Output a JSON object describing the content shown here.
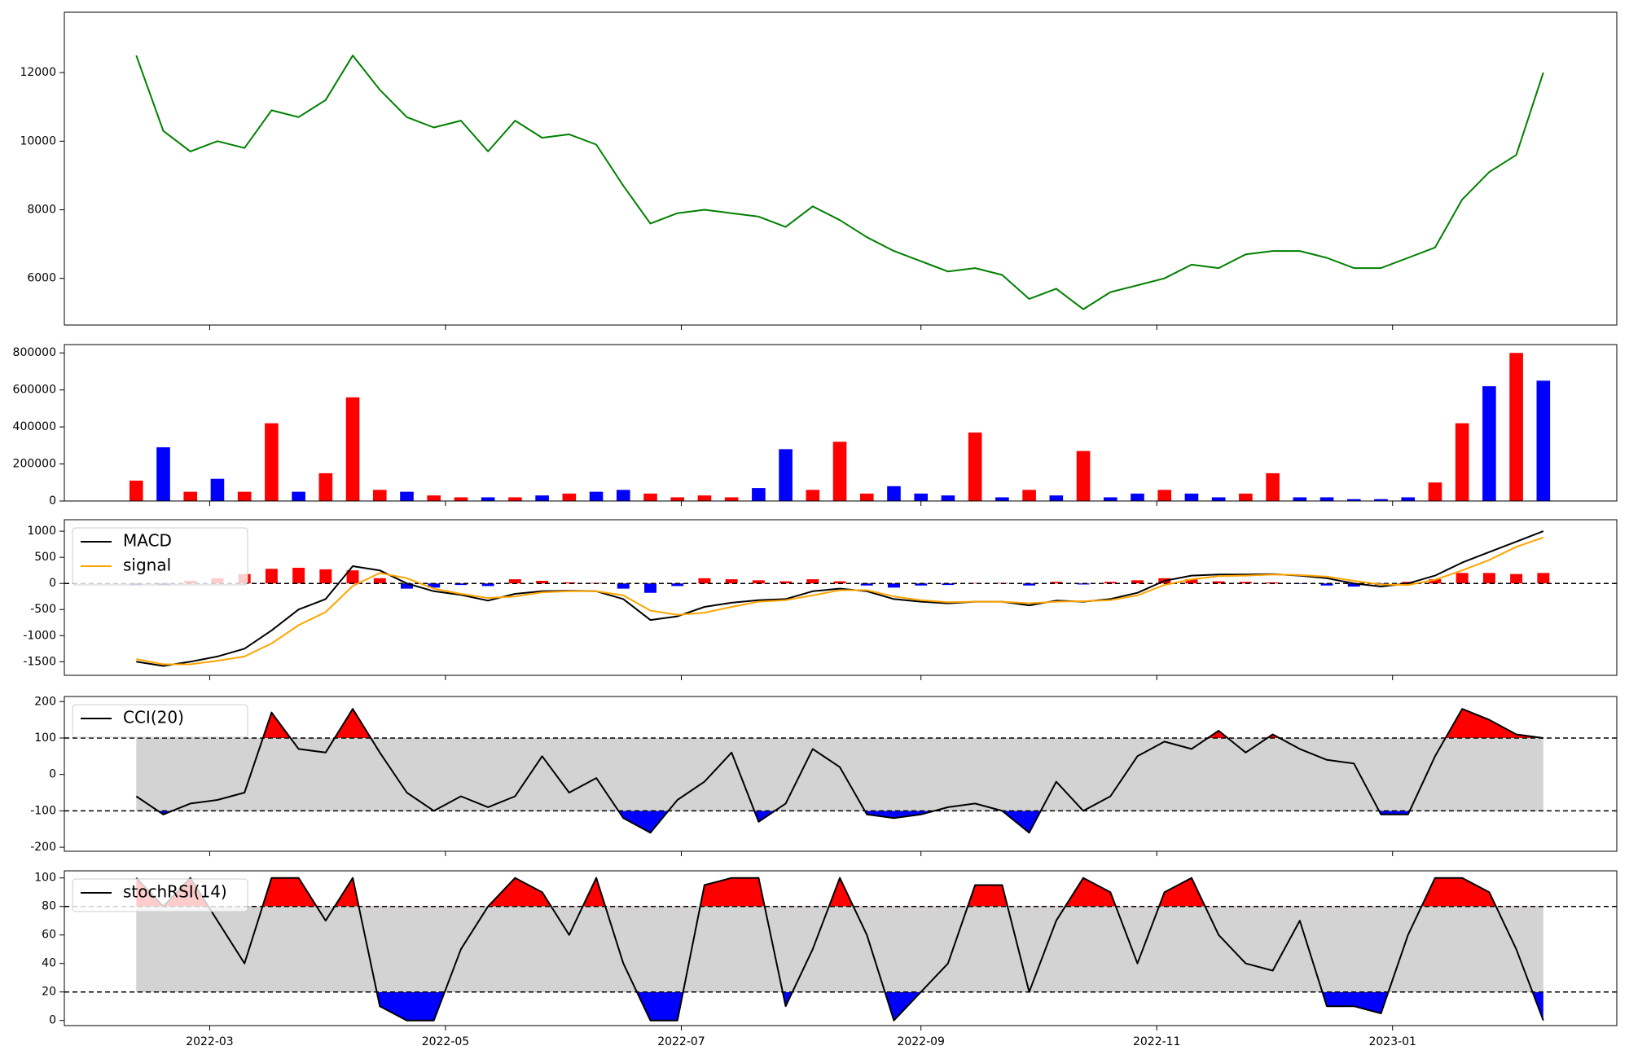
{
  "chart_data": [
    {
      "type": "line",
      "color": "green",
      "x": [
        40,
        47,
        54,
        61,
        68,
        75,
        82,
        89,
        96,
        103,
        110,
        117,
        124,
        131,
        138,
        145,
        152,
        159,
        166,
        173,
        180,
        187,
        194,
        201,
        208,
        215,
        222,
        229,
        236,
        243,
        250,
        257,
        264,
        271,
        278,
        285,
        292,
        299,
        306,
        313,
        320,
        327,
        334,
        341,
        348,
        355,
        362,
        369,
        376,
        383,
        390,
        397,
        404
      ],
      "values": [
        12500,
        10300,
        9700,
        10000,
        9800,
        10900,
        10700,
        11200,
        12500,
        11500,
        10700,
        10400,
        10600,
        9700,
        10600,
        10100,
        10200,
        9900,
        8700,
        7600,
        7900,
        8000,
        7900,
        7800,
        7500,
        8100,
        7700,
        7200,
        6800,
        6500,
        6200,
        6300,
        6100,
        5400,
        5700,
        5100,
        5600,
        5800,
        6000,
        6400,
        6300,
        6700,
        6800,
        6800,
        6600,
        6300,
        6300,
        6600,
        6900,
        8300,
        9100,
        9600,
        12000
      ],
      "xlim": [
        21.4,
        423
      ],
      "ylim": [
        4640,
        13760
      ],
      "yticks": [
        6000,
        8000,
        10000,
        12000
      ]
    },
    {
      "type": "bar",
      "x": [
        40,
        47,
        54,
        61,
        68,
        75,
        82,
        89,
        96,
        103,
        110,
        117,
        124,
        131,
        138,
        145,
        152,
        159,
        166,
        173,
        180,
        187,
        194,
        201,
        208,
        215,
        222,
        229,
        236,
        243,
        250,
        257,
        264,
        271,
        278,
        285,
        292,
        299,
        306,
        313,
        320,
        327,
        334,
        341,
        348,
        355,
        362,
        369,
        376,
        383,
        390,
        397,
        404
      ],
      "values": [
        110000,
        290000,
        50000,
        120000,
        50000,
        420000,
        50000,
        150000,
        560000,
        60000,
        50000,
        30000,
        20000,
        20000,
        20000,
        30000,
        40000,
        50000,
        60000,
        40000,
        20000,
        30000,
        20000,
        70000,
        280000,
        60000,
        320000,
        40000,
        80000,
        40000,
        30000,
        370000,
        20000,
        60000,
        30000,
        270000,
        20000,
        40000,
        60000,
        40000,
        20000,
        40000,
        150000,
        20000,
        20000,
        10000,
        10000,
        20000,
        100000,
        420000,
        620000,
        800000,
        650000
      ],
      "colors": [
        "red",
        "blue",
        "red",
        "blue",
        "red",
        "red",
        "blue",
        "red",
        "red",
        "red",
        "blue",
        "red",
        "red",
        "blue",
        "red",
        "blue",
        "red",
        "blue",
        "blue",
        "red",
        "red",
        "red",
        "red",
        "blue",
        "blue",
        "red",
        "red",
        "red",
        "blue",
        "blue",
        "blue",
        "red",
        "blue",
        "red",
        "blue",
        "red",
        "blue",
        "blue",
        "red",
        "blue",
        "blue",
        "red",
        "red",
        "blue",
        "blue",
        "blue",
        "blue",
        "blue",
        "red",
        "red",
        "blue",
        "red",
        "blue"
      ],
      "xlim": [
        21.4,
        423
      ],
      "ylim": [
        0,
        845000
      ],
      "yticks": [
        0,
        200000,
        400000,
        600000,
        800000
      ]
    },
    {
      "type": "macd",
      "x": [
        40,
        47,
        54,
        61,
        68,
        75,
        82,
        89,
        96,
        103,
        110,
        117,
        124,
        131,
        138,
        145,
        152,
        159,
        166,
        173,
        180,
        187,
        194,
        201,
        208,
        215,
        222,
        229,
        236,
        243,
        250,
        257,
        264,
        271,
        278,
        285,
        292,
        299,
        306,
        313,
        320,
        327,
        334,
        341,
        348,
        355,
        362,
        369,
        376,
        383,
        390,
        397,
        404
      ],
      "series": [
        {
          "name": "MACD",
          "color": "black",
          "values": [
            -1500,
            -1580,
            -1500,
            -1400,
            -1250,
            -900,
            -500,
            -300,
            330,
            250,
            0,
            -150,
            -220,
            -330,
            -200,
            -150,
            -140,
            -150,
            -300,
            -700,
            -630,
            -450,
            -370,
            -320,
            -300,
            -150,
            -100,
            -150,
            -300,
            -350,
            -380,
            -350,
            -350,
            -420,
            -330,
            -350,
            -300,
            -180,
            50,
            150,
            170,
            170,
            180,
            150,
            100,
            0,
            -60,
            0,
            150,
            400,
            600,
            800,
            1000
          ]
        },
        {
          "name": "signal",
          "color": "orange",
          "values": [
            -1450,
            -1550,
            -1550,
            -1480,
            -1400,
            -1150,
            -800,
            -550,
            -50,
            200,
            100,
            -100,
            -200,
            -280,
            -250,
            -170,
            -150,
            -150,
            -230,
            -520,
            -600,
            -560,
            -450,
            -350,
            -320,
            -230,
            -130,
            -130,
            -250,
            -320,
            -360,
            -350,
            -350,
            -380,
            -350,
            -340,
            -320,
            -230,
            -30,
            80,
            140,
            150,
            170,
            160,
            130,
            50,
            -20,
            -30,
            70,
            250,
            450,
            700,
            880
          ]
        }
      ],
      "histogram": [
        -30,
        -20,
        50,
        100,
        180,
        280,
        300,
        270,
        250,
        100,
        -100,
        -80,
        -30,
        -50,
        80,
        50,
        20,
        10,
        -100,
        -180,
        -50,
        100,
        80,
        60,
        40,
        80,
        40,
        -40,
        -80,
        -40,
        -30,
        10,
        10,
        -40,
        30,
        -20,
        30,
        60,
        100,
        80,
        40,
        30,
        20,
        -10,
        -40,
        -60,
        -30,
        30,
        80,
        200,
        200,
        180,
        200
      ],
      "positive_color": "red",
      "negative_color": "blue",
      "xlim": [
        21.4,
        423
      ],
      "ylim": [
        -1760,
        1220
      ],
      "yticks": [
        -1500,
        -1000,
        -500,
        0,
        500,
        1000
      ],
      "legend": "upper left"
    },
    {
      "type": "oscillator",
      "x": [
        40,
        47,
        54,
        61,
        68,
        75,
        82,
        89,
        96,
        103,
        110,
        117,
        124,
        131,
        138,
        145,
        152,
        159,
        166,
        173,
        180,
        187,
        194,
        201,
        208,
        215,
        222,
        229,
        236,
        243,
        250,
        257,
        264,
        271,
        278,
        285,
        292,
        299,
        306,
        313,
        320,
        327,
        334,
        341,
        348,
        355,
        362,
        369,
        376,
        383,
        390,
        397,
        404
      ],
      "series": [
        {
          "name": "CCI(20)",
          "color": "black",
          "values": [
            -60,
            -110,
            -80,
            -70,
            -50,
            170,
            70,
            60,
            180,
            60,
            -50,
            -100,
            -60,
            -90,
            -60,
            50,
            -50,
            -10,
            -120,
            -160,
            -70,
            -20,
            60,
            -130,
            -80,
            70,
            20,
            -110,
            -120,
            -110,
            -90,
            -80,
            -100,
            -160,
            -20,
            -100,
            -60,
            50,
            90,
            70,
            120,
            60,
            110,
            70,
            40,
            30,
            -110,
            -110,
            50,
            180,
            150,
            110,
            100
          ]
        }
      ],
      "thresholds": [
        -100,
        100
      ],
      "upper_color": "red",
      "lower_color": "blue",
      "band_color": "lightgray",
      "xlim": [
        21.4,
        423
      ],
      "ylim": [
        -211,
        214
      ],
      "yticks": [
        -200,
        -100,
        0,
        100,
        200
      ],
      "legend": "upper left"
    },
    {
      "type": "oscillator",
      "x": [
        40,
        47,
        54,
        61,
        68,
        75,
        82,
        89,
        96,
        103,
        110,
        117,
        124,
        131,
        138,
        145,
        152,
        159,
        166,
        173,
        180,
        187,
        194,
        201,
        208,
        215,
        222,
        229,
        236,
        243,
        250,
        257,
        264,
        271,
        278,
        285,
        292,
        299,
        306,
        313,
        320,
        327,
        334,
        341,
        348,
        355,
        362,
        369,
        376,
        383,
        390,
        397,
        404
      ],
      "series": [
        {
          "name": "stochRSI(14)",
          "color": "black",
          "values": [
            100,
            80,
            100,
            70,
            40,
            100,
            100,
            70,
            100,
            10,
            0,
            0,
            50,
            80,
            100,
            90,
            60,
            100,
            40,
            0,
            0,
            95,
            100,
            100,
            10,
            50,
            100,
            60,
            0,
            20,
            40,
            95,
            95,
            20,
            70,
            100,
            90,
            40,
            90,
            100,
            60,
            40,
            35,
            70,
            10,
            10,
            5,
            60,
            100,
            100,
            90,
            50,
            0
          ]
        }
      ],
      "thresholds": [
        20,
        80
      ],
      "upper_color": "red",
      "lower_color": "blue",
      "band_color": "lightgray",
      "xlim": [
        21.4,
        423
      ],
      "ylim": [
        -3.6,
        105
      ],
      "yticks": [
        0,
        20,
        40,
        60,
        80,
        100
      ],
      "legend": "upper left",
      "xticks": [
        {
          "value": 59,
          "label": "2022-03"
        },
        {
          "value": 120,
          "label": "2022-05"
        },
        {
          "value": 181,
          "label": "2022-07"
        },
        {
          "value": 243,
          "label": "2022-09"
        },
        {
          "value": 304,
          "label": "2022-11"
        },
        {
          "value": 365,
          "label": "2023-01"
        }
      ]
    }
  ]
}
